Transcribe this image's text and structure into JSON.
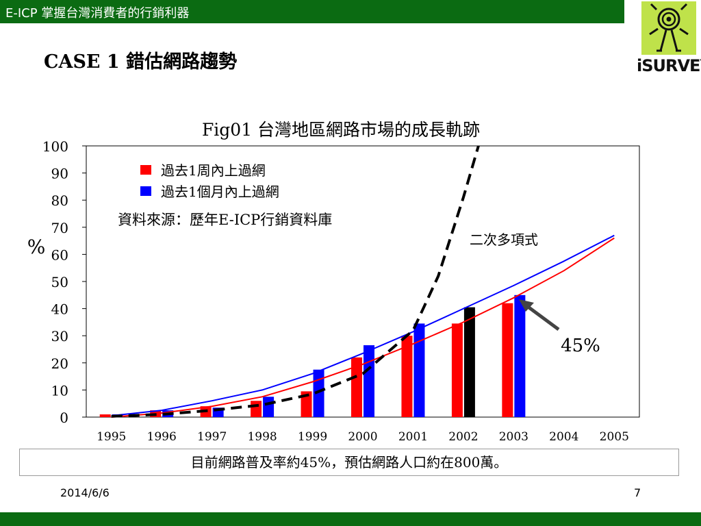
{
  "header": {
    "text": "E-ICP   掌握台灣消費者的行銷利器"
  },
  "case_title": "CASE 1   錯估網路趨勢",
  "logo": {
    "text": "iSURVEY"
  },
  "chart_data": {
    "type": "bar",
    "title": "Fig01  台灣地區網路市場的成長軌跡",
    "ylabel": "%",
    "xlabel": "",
    "ylim": [
      0,
      100
    ],
    "yticks": [
      0,
      10,
      20,
      30,
      40,
      50,
      60,
      70,
      80,
      90,
      100
    ],
    "categories": [
      "1995",
      "1996",
      "1997",
      "1998",
      "1999",
      "2000",
      "2001",
      "2002",
      "2003",
      "2004",
      "2005"
    ],
    "series": [
      {
        "name": "過去1周內上過網",
        "color": "#ff0000",
        "values": [
          1,
          2.5,
          4,
          6,
          9.5,
          22,
          30,
          34.5,
          42,
          null,
          null
        ]
      },
      {
        "name": "過去1個月內上過網",
        "color": "#0000ff",
        "values": [
          1,
          2.5,
          3.5,
          7.5,
          17.5,
          26.5,
          34.5,
          40.5,
          45,
          null,
          null
        ]
      }
    ],
    "highlight": {
      "category": "2002",
      "series": 1,
      "color": "#000000"
    },
    "trend_lines": [
      {
        "label": "二次多項式",
        "color": "#0000ff",
        "points": [
          [
            1995,
            0.5
          ],
          [
            1996,
            2.5
          ],
          [
            1997,
            6
          ],
          [
            1998,
            10
          ],
          [
            1999,
            16
          ],
          [
            2000,
            23.5
          ],
          [
            2001,
            31.5
          ],
          [
            2002,
            40
          ],
          [
            2003,
            48.5
          ],
          [
            2004,
            57.5
          ],
          [
            2005,
            67
          ]
        ]
      },
      {
        "color": "#ff0000",
        "points": [
          [
            1995,
            0
          ],
          [
            1996,
            1.5
          ],
          [
            1997,
            4
          ],
          [
            1998,
            7.5
          ],
          [
            1999,
            13
          ],
          [
            2000,
            19.5
          ],
          [
            2001,
            27
          ],
          [
            2002,
            35
          ],
          [
            2003,
            44
          ],
          [
            2004,
            54
          ],
          [
            2005,
            66
          ]
        ]
      },
      {
        "color": "#000000",
        "dashed": true,
        "points": [
          [
            1995,
            0.3
          ],
          [
            1996,
            1
          ],
          [
            1997,
            2.5
          ],
          [
            1998,
            4.5
          ],
          [
            1999,
            8.5
          ],
          [
            2000,
            16
          ],
          [
            2001,
            32
          ],
          [
            2001.5,
            52
          ],
          [
            2002,
            81
          ],
          [
            2002.3,
            100
          ]
        ]
      }
    ],
    "legend_position": "top-left",
    "source_note": "資料來源：歷年E-ICP行銷資料庫",
    "annotation": {
      "text": "45%",
      "points_to": {
        "category": "2003",
        "value": 45
      }
    },
    "grid": false
  },
  "summary": "目前網路普及率約45%，預估網路人口約在800萬。",
  "footer": {
    "date": "2014/6/6",
    "page": "7"
  }
}
